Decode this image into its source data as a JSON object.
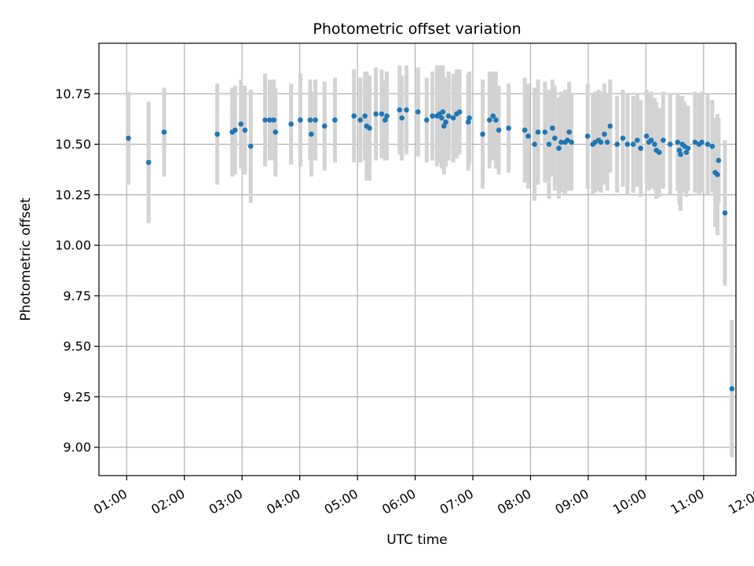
{
  "chart_data": {
    "type": "scatter",
    "title": "Photometric offset variation",
    "xlabel": "UTC time",
    "ylabel": "Photometric offset",
    "x_unit": "hours UTC",
    "xlim": [
      0.52,
      11.56
    ],
    "ylim": [
      8.86,
      11.0
    ],
    "x_tick_labels": [
      "01:00",
      "02:00",
      "03:00",
      "04:00",
      "05:00",
      "06:00",
      "07:00",
      "08:00",
      "09:00",
      "10:00",
      "11:00",
      "12:00"
    ],
    "y_tick_labels": [
      "9.00",
      "9.25",
      "9.50",
      "9.75",
      "10.00",
      "10.25",
      "10.50",
      "10.75"
    ],
    "grid": true,
    "colors": {
      "point": "#1f77b4",
      "errorbar": "#d3d3d3",
      "grid": "#b0b0b0"
    },
    "series": [
      {
        "points": [
          {
            "x": 1.03,
            "y": 10.53,
            "err": 0.23
          },
          {
            "x": 1.38,
            "y": 10.41,
            "err": 0.3
          },
          {
            "x": 1.65,
            "y": 10.56,
            "err": 0.22
          },
          {
            "x": 2.57,
            "y": 10.55,
            "err": 0.25
          },
          {
            "x": 2.83,
            "y": 10.56,
            "err": 0.22
          },
          {
            "x": 2.88,
            "y": 10.57,
            "err": 0.22
          },
          {
            "x": 2.98,
            "y": 10.6,
            "err": 0.22
          },
          {
            "x": 3.05,
            "y": 10.57,
            "err": 0.22
          },
          {
            "x": 3.15,
            "y": 10.49,
            "err": 0.28
          },
          {
            "x": 3.4,
            "y": 10.62,
            "err": 0.23
          },
          {
            "x": 3.48,
            "y": 10.62,
            "err": 0.2
          },
          {
            "x": 3.55,
            "y": 10.62,
            "err": 0.2
          },
          {
            "x": 3.58,
            "y": 10.56,
            "err": 0.22
          },
          {
            "x": 3.85,
            "y": 10.6,
            "err": 0.2
          },
          {
            "x": 4.01,
            "y": 10.62,
            "err": 0.23
          },
          {
            "x": 4.18,
            "y": 10.62,
            "err": 0.2
          },
          {
            "x": 4.2,
            "y": 10.55,
            "err": 0.21
          },
          {
            "x": 4.27,
            "y": 10.62,
            "err": 0.2
          },
          {
            "x": 4.43,
            "y": 10.59,
            "err": 0.22
          },
          {
            "x": 4.61,
            "y": 10.62,
            "err": 0.21
          },
          {
            "x": 4.94,
            "y": 10.64,
            "err": 0.23
          },
          {
            "x": 5.05,
            "y": 10.62,
            "err": 0.21
          },
          {
            "x": 5.13,
            "y": 10.64,
            "err": 0.22
          },
          {
            "x": 5.16,
            "y": 10.59,
            "err": 0.27
          },
          {
            "x": 5.21,
            "y": 10.58,
            "err": 0.26
          },
          {
            "x": 5.32,
            "y": 10.65,
            "err": 0.23
          },
          {
            "x": 5.42,
            "y": 10.65,
            "err": 0.22
          },
          {
            "x": 5.48,
            "y": 10.62,
            "err": 0.2
          },
          {
            "x": 5.51,
            "y": 10.64,
            "err": 0.22
          },
          {
            "x": 5.73,
            "y": 10.67,
            "err": 0.22
          },
          {
            "x": 5.77,
            "y": 10.63,
            "err": 0.21
          },
          {
            "x": 5.85,
            "y": 10.67,
            "err": 0.22
          },
          {
            "x": 6.05,
            "y": 10.66,
            "err": 0.22
          },
          {
            "x": 6.2,
            "y": 10.62,
            "err": 0.21
          },
          {
            "x": 6.3,
            "y": 10.64,
            "err": 0.22
          },
          {
            "x": 6.38,
            "y": 10.64,
            "err": 0.25
          },
          {
            "x": 6.42,
            "y": 10.65,
            "err": 0.24
          },
          {
            "x": 6.46,
            "y": 10.63,
            "err": 0.25
          },
          {
            "x": 6.48,
            "y": 10.66,
            "err": 0.23
          },
          {
            "x": 6.5,
            "y": 10.59,
            "err": 0.24
          },
          {
            "x": 6.53,
            "y": 10.61,
            "err": 0.22
          },
          {
            "x": 6.58,
            "y": 10.64,
            "err": 0.22
          },
          {
            "x": 6.66,
            "y": 10.63,
            "err": 0.22
          },
          {
            "x": 6.72,
            "y": 10.65,
            "err": 0.22
          },
          {
            "x": 6.77,
            "y": 10.66,
            "err": 0.21
          },
          {
            "x": 6.92,
            "y": 10.61,
            "err": 0.24
          },
          {
            "x": 6.94,
            "y": 10.63,
            "err": 0.23
          },
          {
            "x": 7.17,
            "y": 10.55,
            "err": 0.27
          },
          {
            "x": 7.29,
            "y": 10.62,
            "err": 0.24
          },
          {
            "x": 7.35,
            "y": 10.64,
            "err": 0.22
          },
          {
            "x": 7.4,
            "y": 10.62,
            "err": 0.24
          },
          {
            "x": 7.45,
            "y": 10.57,
            "err": 0.22
          },
          {
            "x": 7.62,
            "y": 10.58,
            "err": 0.22
          },
          {
            "x": 7.9,
            "y": 10.57,
            "err": 0.26
          },
          {
            "x": 7.96,
            "y": 10.54,
            "err": 0.26
          },
          {
            "x": 8.07,
            "y": 10.5,
            "err": 0.28
          },
          {
            "x": 8.13,
            "y": 10.56,
            "err": 0.26
          },
          {
            "x": 8.25,
            "y": 10.56,
            "err": 0.25
          },
          {
            "x": 8.32,
            "y": 10.5,
            "err": 0.27
          },
          {
            "x": 8.38,
            "y": 10.58,
            "err": 0.24
          },
          {
            "x": 8.42,
            "y": 10.53,
            "err": 0.26
          },
          {
            "x": 8.49,
            "y": 10.48,
            "err": 0.25
          },
          {
            "x": 8.53,
            "y": 10.51,
            "err": 0.25
          },
          {
            "x": 8.6,
            "y": 10.51,
            "err": 0.26
          },
          {
            "x": 8.64,
            "y": 10.52,
            "err": 0.25
          },
          {
            "x": 8.67,
            "y": 10.56,
            "err": 0.25
          },
          {
            "x": 8.71,
            "y": 10.51,
            "err": 0.24
          },
          {
            "x": 8.99,
            "y": 10.54,
            "err": 0.26
          },
          {
            "x": 9.08,
            "y": 10.5,
            "err": 0.25
          },
          {
            "x": 9.12,
            "y": 10.51,
            "err": 0.25
          },
          {
            "x": 9.18,
            "y": 10.52,
            "err": 0.25
          },
          {
            "x": 9.22,
            "y": 10.51,
            "err": 0.25
          },
          {
            "x": 9.28,
            "y": 10.55,
            "err": 0.25
          },
          {
            "x": 9.33,
            "y": 10.51,
            "err": 0.24
          },
          {
            "x": 9.38,
            "y": 10.59,
            "err": 0.23
          },
          {
            "x": 9.5,
            "y": 10.5,
            "err": 0.24
          },
          {
            "x": 9.6,
            "y": 10.53,
            "err": 0.24
          },
          {
            "x": 9.68,
            "y": 10.5,
            "err": 0.25
          },
          {
            "x": 9.78,
            "y": 10.5,
            "err": 0.24
          },
          {
            "x": 9.85,
            "y": 10.52,
            "err": 0.23
          },
          {
            "x": 9.91,
            "y": 10.48,
            "err": 0.24
          },
          {
            "x": 10.01,
            "y": 10.54,
            "err": 0.23
          },
          {
            "x": 10.05,
            "y": 10.51,
            "err": 0.24
          },
          {
            "x": 10.09,
            "y": 10.52,
            "err": 0.24
          },
          {
            "x": 10.15,
            "y": 10.5,
            "err": 0.23
          },
          {
            "x": 10.18,
            "y": 10.47,
            "err": 0.24
          },
          {
            "x": 10.23,
            "y": 10.46,
            "err": 0.22
          },
          {
            "x": 10.3,
            "y": 10.52,
            "err": 0.24
          },
          {
            "x": 10.42,
            "y": 10.5,
            "err": 0.25
          },
          {
            "x": 10.55,
            "y": 10.51,
            "err": 0.24
          },
          {
            "x": 10.58,
            "y": 10.47,
            "err": 0.27
          },
          {
            "x": 10.6,
            "y": 10.45,
            "err": 0.28
          },
          {
            "x": 10.63,
            "y": 10.5,
            "err": 0.24
          },
          {
            "x": 10.67,
            "y": 10.49,
            "err": 0.22
          },
          {
            "x": 10.7,
            "y": 10.46,
            "err": 0.22
          },
          {
            "x": 10.73,
            "y": 10.48,
            "err": 0.21
          },
          {
            "x": 10.85,
            "y": 10.51,
            "err": 0.25
          },
          {
            "x": 10.92,
            "y": 10.5,
            "err": 0.25
          },
          {
            "x": 10.97,
            "y": 10.51,
            "err": 0.25
          },
          {
            "x": 11.07,
            "y": 10.5,
            "err": 0.25
          },
          {
            "x": 11.15,
            "y": 10.49,
            "err": 0.23
          },
          {
            "x": 11.2,
            "y": 10.36,
            "err": 0.27
          },
          {
            "x": 11.24,
            "y": 10.35,
            "err": 0.3
          },
          {
            "x": 11.26,
            "y": 10.42,
            "err": 0.21
          },
          {
            "x": 11.37,
            "y": 10.16,
            "err": 0.36
          },
          {
            "x": 11.49,
            "y": 9.29,
            "err": 0.34
          }
        ]
      }
    ]
  }
}
